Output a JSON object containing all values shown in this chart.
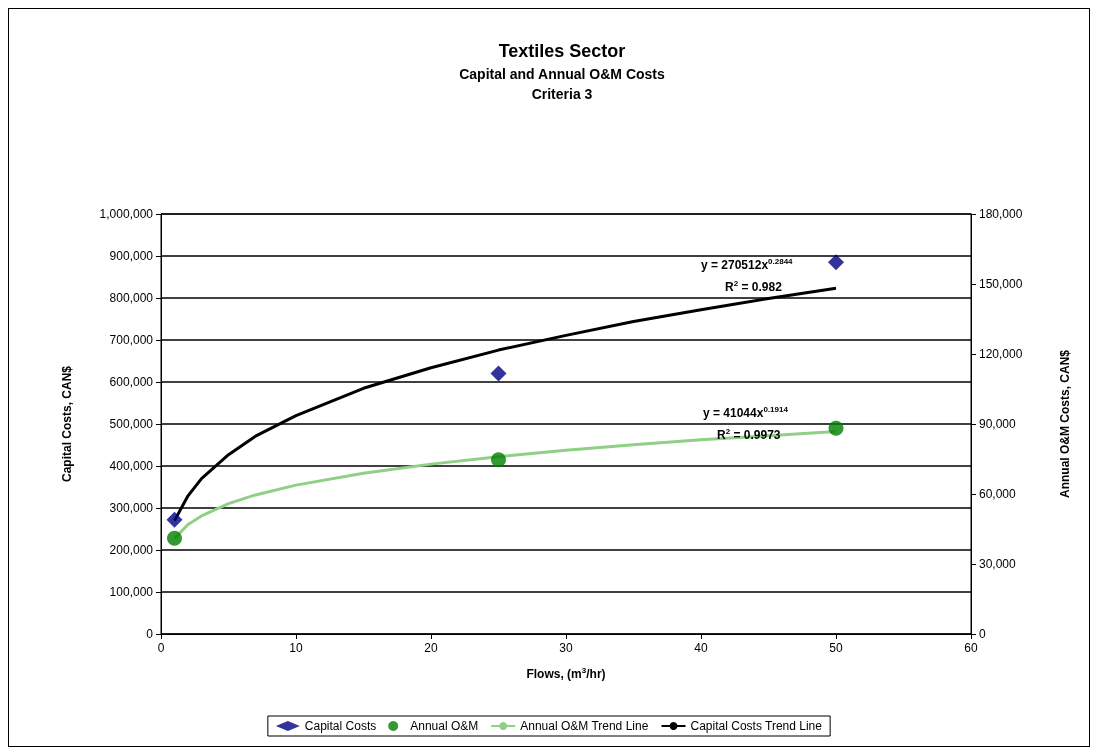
{
  "chart_data": {
    "type": "scatter",
    "title": "Textiles Sector",
    "subtitle": "Capital and Annual O&M Costs\nCriteria 3",
    "xlabel": "Flows, (m$^{3}$/hr)",
    "ylabel": "Capital Costs, CAN$",
    "y2label": "Annual O&M Costs, CAN$",
    "x": [
      1,
      25,
      50
    ],
    "series": [
      {
        "name": "Capital Costs",
        "type": "scatter",
        "marker": "diamond",
        "color": "#000080",
        "values": [
          272000,
          620000,
          885000
        ]
      },
      {
        "name": "Annual O&M",
        "type": "scatter",
        "marker": "circle",
        "color": "#008000",
        "axis": "y2",
        "values": [
          41000,
          74700,
          88200
        ]
      },
      {
        "name": "Annual O&M Trend Line",
        "type": "line",
        "marker": "none",
        "color": "#8fcf86",
        "axis": "y2",
        "x": [
          1,
          2,
          3,
          5,
          7,
          10,
          15,
          20,
          25,
          30,
          35,
          40,
          45,
          50
        ],
        "values": [
          41000,
          46900,
          50600,
          55900,
          59600,
          63800,
          68900,
          72800,
          76000,
          78700,
          81100,
          83200,
          85000,
          86800
        ]
      },
      {
        "name": "Capital Costs Trend Line",
        "type": "line",
        "marker": "none",
        "color": "#000000",
        "x": [
          1,
          2,
          3,
          5,
          7,
          10,
          15,
          20,
          25,
          30,
          35,
          40,
          45,
          50
        ],
        "values": [
          270000,
          329000,
          370000,
          427000,
          471000,
          520000,
          585000,
          634000,
          676000,
          711000,
          744000,
          772000,
          799000,
          823000
        ]
      }
    ],
    "xlim": [
      0,
      60
    ],
    "xticks": [
      0,
      10,
      20,
      30,
      40,
      50,
      60
    ],
    "ylim": [
      0,
      1000000
    ],
    "yticks": [
      0,
      {
        "value": 100000,
        "label": "100,000"
      },
      {
        "value": 200000,
        "label": "200,000"
      },
      {
        "value": 300000,
        "label": "300,000"
      },
      {
        "value": 400000,
        "label": "400,000"
      },
      {
        "value": 500000,
        "label": "500,000"
      },
      {
        "value": 600000,
        "label": "600,000"
      },
      {
        "value": 700000,
        "label": "700,000"
      },
      {
        "value": 800000,
        "label": "800,000"
      },
      {
        "value": 900000,
        "label": "900,000"
      },
      {
        "value": 1000000,
        "label": "1,000,000"
      }
    ],
    "y2lim": [
      0,
      180000
    ],
    "y2ticks": [
      0,
      {
        "value": 30000,
        "label": "30,000"
      },
      {
        "value": 60000,
        "label": "60,000"
      },
      {
        "value": 90000,
        "label": "90,000"
      },
      {
        "value": 120000,
        "label": "120,000"
      },
      {
        "value": 150000,
        "label": "150,000"
      },
      {
        "value": 180000,
        "label": "180,000"
      }
    ],
    "annotations": [
      "y = 270512x$^{0.2844}$",
      "R$^{2}$ = 0.982",
      "y = 41044x$^{0.1914}$",
      "R$^{2}$ = 0.9973"
    ],
    "grid": "y",
    "legend": "bottom"
  }
}
